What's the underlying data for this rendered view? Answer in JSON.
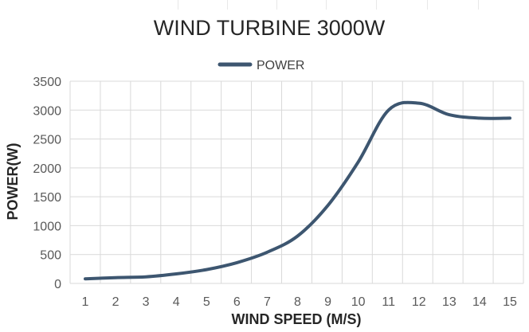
{
  "chart_data": {
    "type": "line",
    "title": "WIND TURBINE 3000W",
    "xlabel": "WIND SPEED (M/S)",
    "ylabel": "POWER(W)",
    "x": [
      1,
      2,
      3,
      4,
      5,
      6,
      7,
      8,
      9,
      10,
      11,
      12,
      13,
      14,
      15
    ],
    "series": [
      {
        "name": "POWER",
        "color": "#3d5670",
        "values": [
          80,
          100,
          115,
          165,
          240,
          360,
          540,
          820,
          1350,
          2100,
          3000,
          3120,
          2920,
          2860,
          2860
        ]
      }
    ],
    "ylim": [
      0,
      3500
    ],
    "yticks": [
      0,
      500,
      1000,
      1500,
      2000,
      2500,
      3000,
      3500
    ],
    "xlim": [
      1,
      15
    ],
    "grid": {
      "horizontal": true,
      "vertical": true,
      "color": "#d9d9d9"
    },
    "legend": "top-center",
    "line_style": "smooth"
  }
}
